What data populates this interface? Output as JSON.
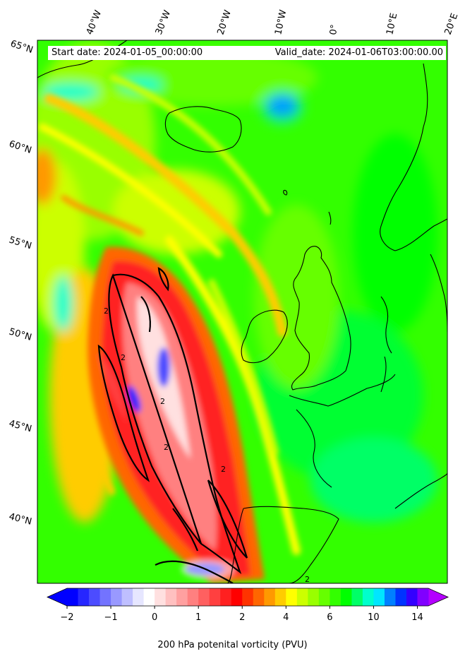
{
  "header": {
    "start_date": "Start date: 2024-01-05_00:00:00",
    "valid_date": "Valid_date: 2024-01-06T03:00:00.00"
  },
  "lon_labels": [
    "40°W",
    "30°W",
    "20°W",
    "10°W",
    "0°",
    "10°E",
    "20°E"
  ],
  "lat_labels": [
    "65°N",
    "60°N",
    "55°N",
    "50°N",
    "45°N",
    "40°N"
  ],
  "colorbar": {
    "title": "200 hPa potenital vorticity (PVU)",
    "tick_labels": [
      "−2",
      "−1",
      "0",
      "1",
      "2",
      "4",
      "6",
      "10",
      "14"
    ],
    "colors": [
      "#0000ff",
      "#2626ff",
      "#4c4cff",
      "#7373ff",
      "#9999ff",
      "#bfbfff",
      "#e6e6ff",
      "#ffffff",
      "#ffe0e0",
      "#ffc0c0",
      "#ffa0a0",
      "#ff8080",
      "#ff6060",
      "#ff4040",
      "#ff2020",
      "#ff0000",
      "#ff3300",
      "#ff6600",
      "#ff9900",
      "#ffcc00",
      "#ffff00",
      "#ccff00",
      "#99ff00",
      "#66ff00",
      "#33ff00",
      "#00ff00",
      "#00ff66",
      "#00ffcc",
      "#00e6ff",
      "#0080ff",
      "#0033ff",
      "#3300ff",
      "#8000ff"
    ],
    "extend_low_color": "#0000ff",
    "extend_high_color": "#b400ff"
  },
  "contour_label": "2"
}
